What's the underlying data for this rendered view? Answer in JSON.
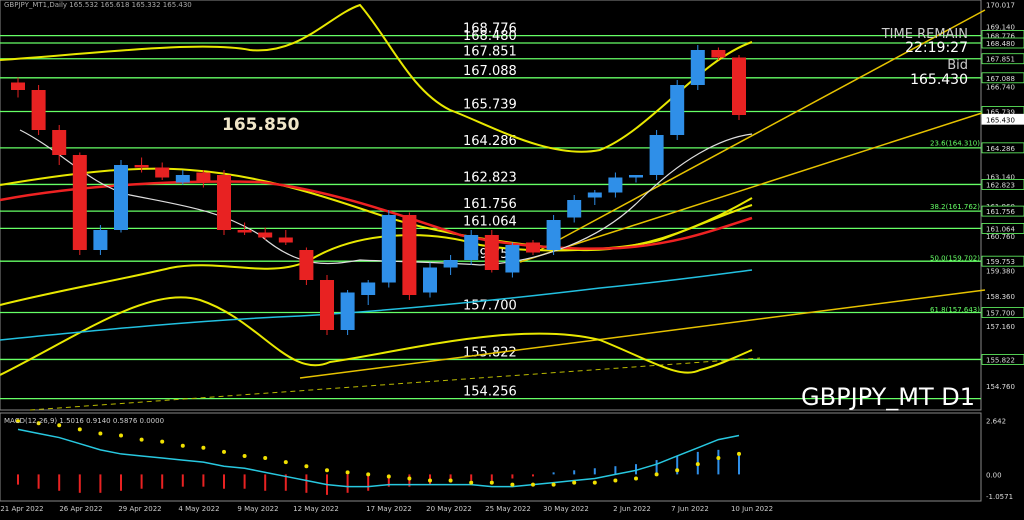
{
  "header": {
    "text": "GBPJPY_MT1,Daily 165.532 165.618 165.332 165.430"
  },
  "symbol_label": "GBPJPY_MT D1",
  "big_price": "165.850",
  "time_remain": {
    "label": "TIME REMAIN",
    "value": "22:19:27"
  },
  "bid": {
    "label": "Bid",
    "value": "165.430"
  },
  "colors": {
    "bull": "#2f8fe8",
    "bear": "#e82222",
    "level": "#66ff66",
    "band": "#e8e800",
    "macd_line": "#28c8e0"
  },
  "chart_data": [
    {
      "type": "candlestick",
      "title": "GBPJPY_MT D1",
      "ylim": [
        153.8,
        170.2
      ],
      "x_tick_labels": [
        "21 Apr 2022",
        "26 Apr 2022",
        "29 Apr 2022",
        "4 May 2022",
        "9 May 2022",
        "12 May 2022",
        "17 May 2022",
        "20 May 2022",
        "25 May 2022",
        "30 May 2022",
        "2 Jun 2022",
        "7 Jun 2022",
        "10 Jun 2022"
      ],
      "y_tick_labels": [
        "170.017",
        "169.140",
        "168.776",
        "168.480",
        "167.851",
        "167.088",
        "166.740",
        "165.739",
        "165.430",
        "164.286",
        "163.140",
        "162.823",
        "161.960",
        "161.756",
        "161.064",
        "160.760",
        "159.753",
        "159.380",
        "158.360",
        "157.700",
        "157.160",
        "155.822",
        "154.760"
      ],
      "levels": [
        {
          "price": 168.776,
          "label": "168.776"
        },
        {
          "price": 168.48,
          "label": "168.480"
        },
        {
          "price": 167.851,
          "label": "167.851"
        },
        {
          "price": 167.088,
          "label": "167.088"
        },
        {
          "price": 165.739,
          "label": "165.739"
        },
        {
          "price": 164.286,
          "label": "164.286"
        },
        {
          "price": 162.823,
          "label": "162.823"
        },
        {
          "price": 161.756,
          "label": "161.756"
        },
        {
          "price": 161.064,
          "label": "161.064"
        },
        {
          "price": 159.753,
          "label": "159.753"
        },
        {
          "price": 157.7,
          "label": "157.700"
        },
        {
          "price": 155.822,
          "label": "155.822"
        },
        {
          "price": 154.256,
          "label": "154.256"
        }
      ],
      "fib_labels": [
        {
          "price": 164.31,
          "label": "23.6(164.310)"
        },
        {
          "price": 161.762,
          "label": "38.2(161.762)"
        },
        {
          "price": 159.702,
          "label": "50.0(159.702)"
        },
        {
          "price": 157.643,
          "label": "61.8(157.643)"
        }
      ],
      "candles": [
        {
          "o": 166.9,
          "h": 167.1,
          "l": 166.3,
          "c": 166.6
        },
        {
          "o": 166.6,
          "h": 166.8,
          "l": 164.8,
          "c": 165.0
        },
        {
          "o": 165.0,
          "h": 165.2,
          "l": 163.6,
          "c": 164.0
        },
        {
          "o": 164.0,
          "h": 164.1,
          "l": 160.0,
          "c": 160.2
        },
        {
          "o": 160.2,
          "h": 161.2,
          "l": 160.0,
          "c": 161.0
        },
        {
          "o": 161.0,
          "h": 163.8,
          "l": 160.9,
          "c": 163.6
        },
        {
          "o": 163.6,
          "h": 163.9,
          "l": 163.3,
          "c": 163.5
        },
        {
          "o": 163.5,
          "h": 163.7,
          "l": 163.0,
          "c": 163.1
        },
        {
          "o": 162.9,
          "h": 163.4,
          "l": 162.8,
          "c": 163.2
        },
        {
          "o": 163.3,
          "h": 163.4,
          "l": 162.7,
          "c": 162.9
        },
        {
          "o": 163.2,
          "h": 163.4,
          "l": 160.8,
          "c": 161.0
        },
        {
          "o": 161.0,
          "h": 161.3,
          "l": 160.8,
          "c": 160.9
        },
        {
          "o": 160.9,
          "h": 161.1,
          "l": 160.6,
          "c": 160.7
        },
        {
          "o": 160.7,
          "h": 161.0,
          "l": 160.4,
          "c": 160.5
        },
        {
          "o": 160.2,
          "h": 160.3,
          "l": 158.8,
          "c": 159.0
        },
        {
          "o": 159.0,
          "h": 159.2,
          "l": 156.8,
          "c": 157.0
        },
        {
          "o": 157.0,
          "h": 158.6,
          "l": 156.8,
          "c": 158.5
        },
        {
          "o": 158.4,
          "h": 159.0,
          "l": 158.0,
          "c": 158.9
        },
        {
          "o": 158.9,
          "h": 161.8,
          "l": 158.7,
          "c": 161.6
        },
        {
          "o": 161.6,
          "h": 161.7,
          "l": 158.2,
          "c": 158.4
        },
        {
          "o": 158.5,
          "h": 159.7,
          "l": 158.3,
          "c": 159.5
        },
        {
          "o": 159.5,
          "h": 160.0,
          "l": 159.2,
          "c": 159.8
        },
        {
          "o": 159.8,
          "h": 161.0,
          "l": 159.6,
          "c": 160.8
        },
        {
          "o": 160.8,
          "h": 161.0,
          "l": 159.3,
          "c": 159.4
        },
        {
          "o": 159.3,
          "h": 160.5,
          "l": 159.1,
          "c": 160.4
        },
        {
          "o": 160.5,
          "h": 160.6,
          "l": 160.0,
          "c": 160.1
        },
        {
          "o": 160.2,
          "h": 161.6,
          "l": 160.0,
          "c": 161.4
        },
        {
          "o": 161.5,
          "h": 162.4,
          "l": 161.3,
          "c": 162.2
        },
        {
          "o": 162.3,
          "h": 162.6,
          "l": 162.0,
          "c": 162.5
        },
        {
          "o": 162.5,
          "h": 163.3,
          "l": 162.3,
          "c": 163.1
        },
        {
          "o": 163.1,
          "h": 163.2,
          "l": 162.9,
          "c": 163.2
        },
        {
          "o": 163.2,
          "h": 165.0,
          "l": 163.0,
          "c": 164.8
        },
        {
          "o": 164.8,
          "h": 167.0,
          "l": 164.6,
          "c": 166.8
        },
        {
          "o": 166.8,
          "h": 168.4,
          "l": 166.6,
          "c": 168.2
        },
        {
          "o": 168.2,
          "h": 168.3,
          "l": 167.8,
          "c": 167.9
        },
        {
          "o": 167.9,
          "h": 168.0,
          "l": 165.4,
          "c": 165.6
        }
      ]
    },
    {
      "type": "bar",
      "title": "MACD(12,26,9) 1.5016 0.9140 0.5876 0.0000",
      "ylim": [
        -1.3,
        3.0
      ],
      "y_tick_labels": [
        "2.642",
        "0.00",
        "-1.0571"
      ],
      "histogram": [
        -0.5,
        -0.7,
        -0.8,
        -0.9,
        -0.9,
        -0.8,
        -0.7,
        -0.7,
        -0.6,
        -0.6,
        -0.7,
        -0.7,
        -0.8,
        -0.8,
        -0.9,
        -1.0,
        -0.9,
        -0.8,
        -0.6,
        -0.6,
        -0.5,
        -0.4,
        -0.3,
        -0.3,
        -0.2,
        -0.1,
        0.1,
        0.2,
        0.3,
        0.4,
        0.5,
        0.7,
        0.9,
        1.1,
        1.2,
        1.0
      ],
      "macd": [
        2.2,
        2.0,
        1.8,
        1.5,
        1.2,
        1.0,
        0.9,
        0.8,
        0.7,
        0.6,
        0.4,
        0.3,
        0.1,
        -0.1,
        -0.3,
        -0.5,
        -0.6,
        -0.6,
        -0.5,
        -0.5,
        -0.5,
        -0.5,
        -0.5,
        -0.6,
        -0.6,
        -0.5,
        -0.4,
        -0.3,
        -0.2,
        0.0,
        0.2,
        0.5,
        0.9,
        1.3,
        1.7,
        1.9
      ],
      "signal": [
        2.6,
        2.5,
        2.4,
        2.2,
        2.0,
        1.9,
        1.7,
        1.6,
        1.4,
        1.3,
        1.1,
        0.9,
        0.8,
        0.6,
        0.4,
        0.2,
        0.1,
        0.0,
        -0.1,
        -0.2,
        -0.3,
        -0.3,
        -0.4,
        -0.4,
        -0.5,
        -0.5,
        -0.5,
        -0.4,
        -0.4,
        -0.3,
        -0.2,
        0.0,
        0.2,
        0.5,
        0.8,
        1.0
      ]
    }
  ]
}
